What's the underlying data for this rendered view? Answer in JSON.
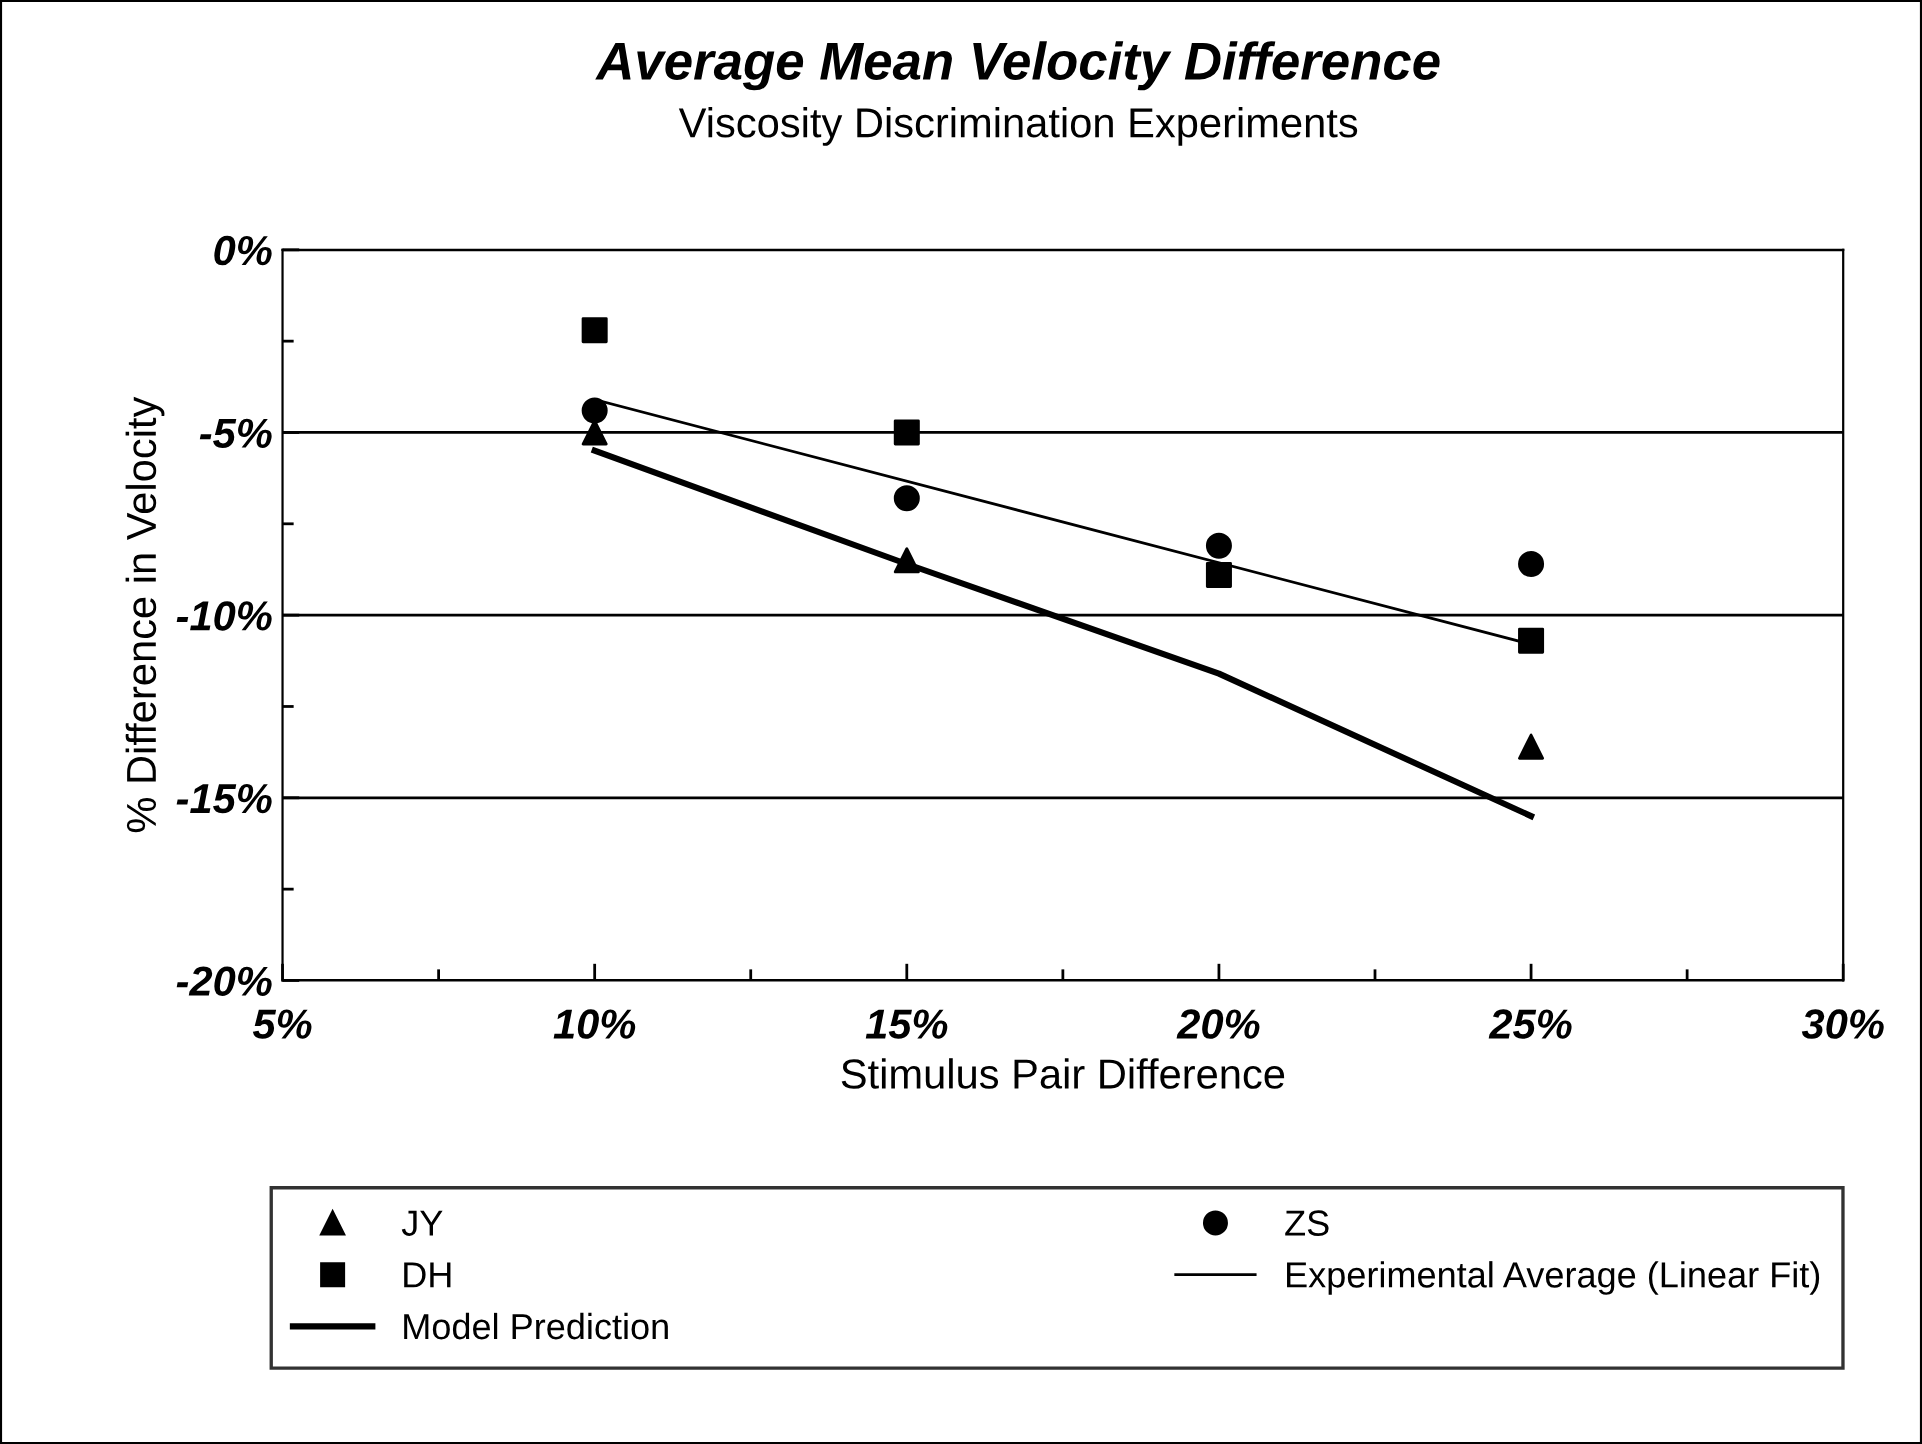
{
  "chart_data": {
    "type": "scatter",
    "title": "Average Mean Velocity Difference",
    "subtitle": "Viscosity Discrimination Experiments",
    "xlabel": "Stimulus Pair Difference",
    "ylabel": "% Difference in Velocity",
    "x": [
      10,
      15,
      20,
      25
    ],
    "series": [
      {
        "name": "JY",
        "color": "#000000",
        "marker": "triangle",
        "values": [
          -5.0,
          -8.5,
          null,
          -13.6
        ]
      },
      {
        "name": "ZS",
        "color": "#000000",
        "marker": "circle",
        "values": [
          -4.4,
          -6.8,
          -8.1,
          -8.6
        ]
      },
      {
        "name": "DH",
        "color": "#000000",
        "marker": "square",
        "values": [
          -2.2,
          -5.0,
          -8.9,
          -10.7
        ]
      },
      {
        "name": "Experimental Average (Linear Fit)",
        "type": "line",
        "color": "#000000",
        "x": [
          10,
          25
        ],
        "values": [
          -4.1,
          -10.8
        ]
      },
      {
        "name": "Model Prediction",
        "type": "line",
        "color": "#000000",
        "x": [
          10,
          15,
          20,
          25
        ],
        "values": [
          -5.5,
          -8.6,
          -11.6,
          -15.5
        ]
      }
    ],
    "xlim": [
      5,
      30
    ],
    "xticks": [
      {
        "value": 5,
        "label": "5%"
      },
      {
        "value": 10,
        "label": "10%"
      },
      {
        "value": 15,
        "label": "15%"
      },
      {
        "value": 20,
        "label": "20%"
      },
      {
        "value": 25,
        "label": "25%"
      },
      {
        "value": 30,
        "label": "30%"
      }
    ],
    "ylim": [
      -20,
      0
    ],
    "yticks": [
      {
        "value": -20,
        "label": "-20%"
      },
      {
        "value": -15,
        "label": "-15%"
      },
      {
        "value": -10,
        "label": "-10%"
      },
      {
        "value": -5,
        "label": "-5%"
      },
      {
        "value": 0,
        "label": "0%"
      }
    ],
    "grid": "y",
    "legend": "bottom"
  }
}
